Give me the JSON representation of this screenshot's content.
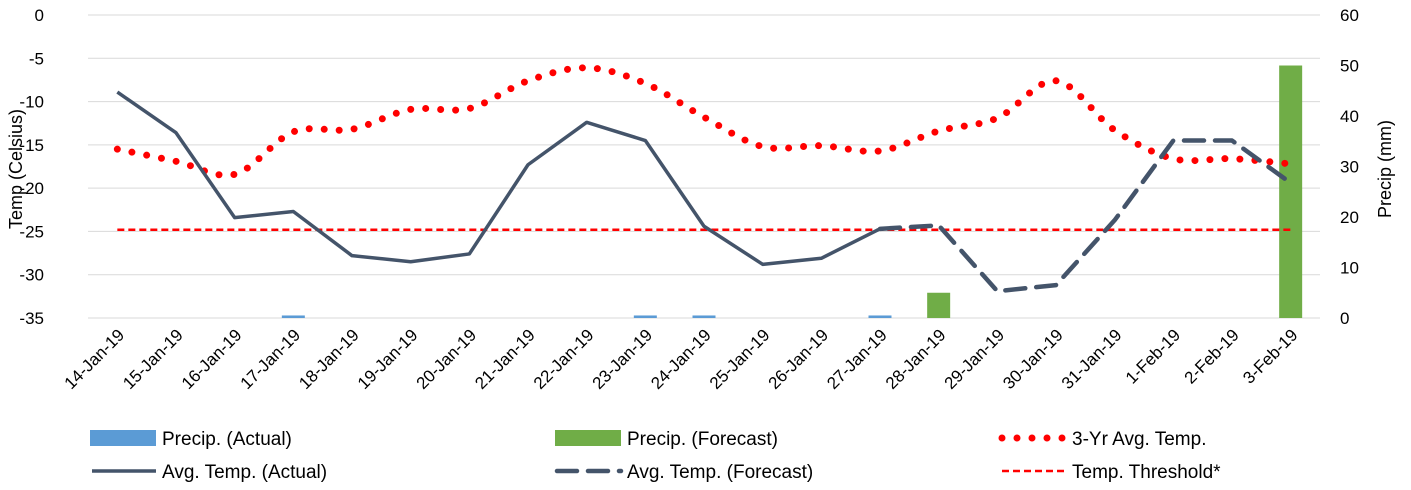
{
  "chart_data": {
    "type": "bar-line-combo",
    "categories": [
      "14-Jan-19",
      "15-Jan-19",
      "16-Jan-19",
      "17-Jan-19",
      "18-Jan-19",
      "19-Jan-19",
      "20-Jan-19",
      "21-Jan-19",
      "22-Jan-19",
      "23-Jan-19",
      "24-Jan-19",
      "25-Jan-19",
      "26-Jan-19",
      "27-Jan-19",
      "28-Jan-19",
      "29-Jan-19",
      "30-Jan-19",
      "31-Jan-19",
      "1-Feb-19",
      "2-Feb-19",
      "3-Feb-19"
    ],
    "y_left": {
      "label": "Temp  (Celsius)",
      "min": -35,
      "max": 0,
      "step": 5,
      "ticks": [
        "-35",
        "-30",
        "-25",
        "-20",
        "-15",
        "-10",
        "-5",
        "0"
      ]
    },
    "y_right": {
      "label": "Precip (mm)",
      "min": 0,
      "max": 60,
      "step": 10,
      "ticks": [
        "0",
        "10",
        "20",
        "30",
        "40",
        "50",
        "60"
      ]
    },
    "grid": true,
    "legend_position": "bottom",
    "series": [
      {
        "name": "Precip. (Actual)",
        "kind": "bar",
        "axis": "right",
        "color": "#5b9bd5",
        "values": [
          0,
          0,
          0,
          0.5,
          0,
          0,
          0,
          0,
          0,
          0.5,
          0.5,
          0,
          0,
          0.5,
          0,
          0,
          0,
          0,
          0,
          0,
          0
        ]
      },
      {
        "name": "Precip. (Forecast)",
        "kind": "bar",
        "axis": "right",
        "color": "#70ad47",
        "values": [
          0,
          0,
          0,
          0,
          0,
          0,
          0,
          0,
          0,
          0,
          0,
          0,
          0,
          0,
          5,
          0,
          0,
          0,
          0,
          0,
          50
        ]
      },
      {
        "name": "3-Yr Avg. Temp.",
        "kind": "line",
        "style": "dotted",
        "axis": "left",
        "color": "#ff0000",
        "values": [
          -15.5,
          -16.9,
          -18.4,
          -13.5,
          -13.2,
          -10.9,
          -10.8,
          -7.6,
          -6.1,
          -7.9,
          -11.8,
          -15.2,
          -15.1,
          -15.7,
          -13.4,
          -11.9,
          -7.6,
          -13.3,
          -16.6,
          -16.6,
          -17.2
        ]
      },
      {
        "name": "Avg. Temp. (Actual)",
        "kind": "line",
        "style": "solid",
        "axis": "left",
        "color": "#44546a",
        "values": [
          -8.9,
          -13.6,
          -23.4,
          -22.7,
          -27.8,
          -28.5,
          -27.6,
          -17.3,
          -12.4,
          -14.5,
          -24.4,
          -28.8,
          -28.1,
          -24.7,
          null,
          null,
          null,
          null,
          null,
          null,
          null
        ]
      },
      {
        "name": "Avg. Temp. (Forecast)",
        "kind": "line",
        "style": "dashed",
        "axis": "left",
        "color": "#44546a",
        "values": [
          null,
          null,
          null,
          null,
          null,
          null,
          null,
          null,
          null,
          null,
          null,
          null,
          null,
          -24.7,
          -24.3,
          -31.9,
          -31.2,
          -23.7,
          -14.5,
          -14.5,
          -19.4
        ]
      },
      {
        "name": "Temp. Threshold*",
        "kind": "line",
        "style": "short-dashed",
        "axis": "left",
        "color": "#ff0000",
        "values": [
          -24.8,
          -24.8,
          -24.8,
          -24.8,
          -24.8,
          -24.8,
          -24.8,
          -24.8,
          -24.8,
          -24.8,
          -24.8,
          -24.8,
          -24.8,
          -24.8,
          -24.8,
          -24.8,
          -24.8,
          -24.8,
          -24.8,
          -24.8,
          -24.8
        ]
      }
    ]
  }
}
